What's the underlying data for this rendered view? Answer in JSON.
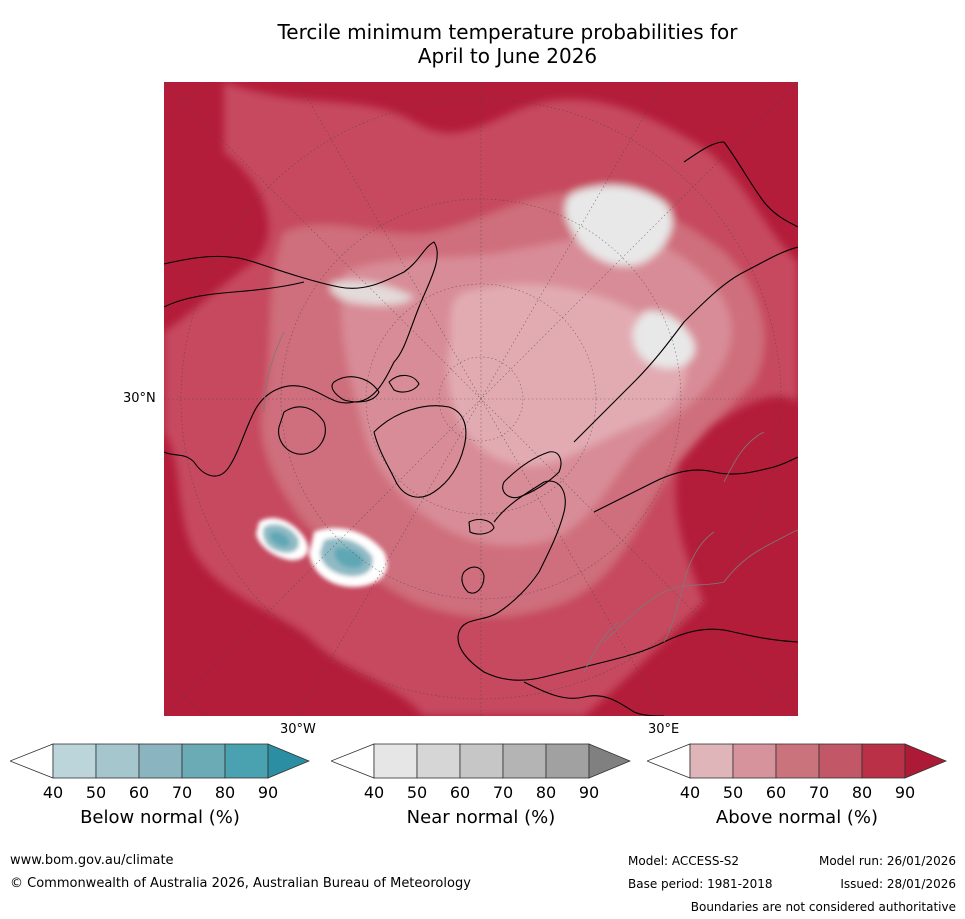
{
  "title": {
    "line1": "Tercile minimum temperature probabilities for",
    "line2": "April to June 2026"
  },
  "map": {
    "projection": "north-polar-stereographic",
    "lat_label": "30°N",
    "lon_labels": {
      "west": "30°W",
      "east": "30°E"
    }
  },
  "colorbars": [
    {
      "label": "Below normal (%)",
      "ticks": [
        "40",
        "50",
        "60",
        "70",
        "80",
        "90"
      ],
      "colors": [
        "#ffffff",
        "#bcd5da",
        "#a4c6cc",
        "#8ab4bf",
        "#6aabb6",
        "#4aa1b0",
        "#2b8ea3"
      ]
    },
    {
      "label": "Near normal (%)",
      "ticks": [
        "40",
        "50",
        "60",
        "70",
        "80",
        "90"
      ],
      "colors": [
        "#ffffff",
        "#e6e6e6",
        "#d6d6d6",
        "#c6c6c6",
        "#b4b4b4",
        "#a1a1a1",
        "#808080"
      ]
    },
    {
      "label": "Above normal (%)",
      "ticks": [
        "40",
        "50",
        "60",
        "70",
        "80",
        "90"
      ],
      "colors": [
        "#ffffff",
        "#e0b5b9",
        "#d6939b",
        "#ca737d",
        "#c25767",
        "#b93047",
        "#ad1a36"
      ]
    }
  ],
  "footer": {
    "website": "www.bom.gov.au/climate",
    "copyright": "© Commonwealth of Australia 2026, Australian Bureau of Meteorology",
    "model": "Model: ACCESS-S2",
    "base_period": "Base period: 1981-2018",
    "model_run": "Model run: 26/01/2026",
    "issued": "Issued: 28/01/2026",
    "disclaimer": "Boundaries are not considered authoritative"
  }
}
